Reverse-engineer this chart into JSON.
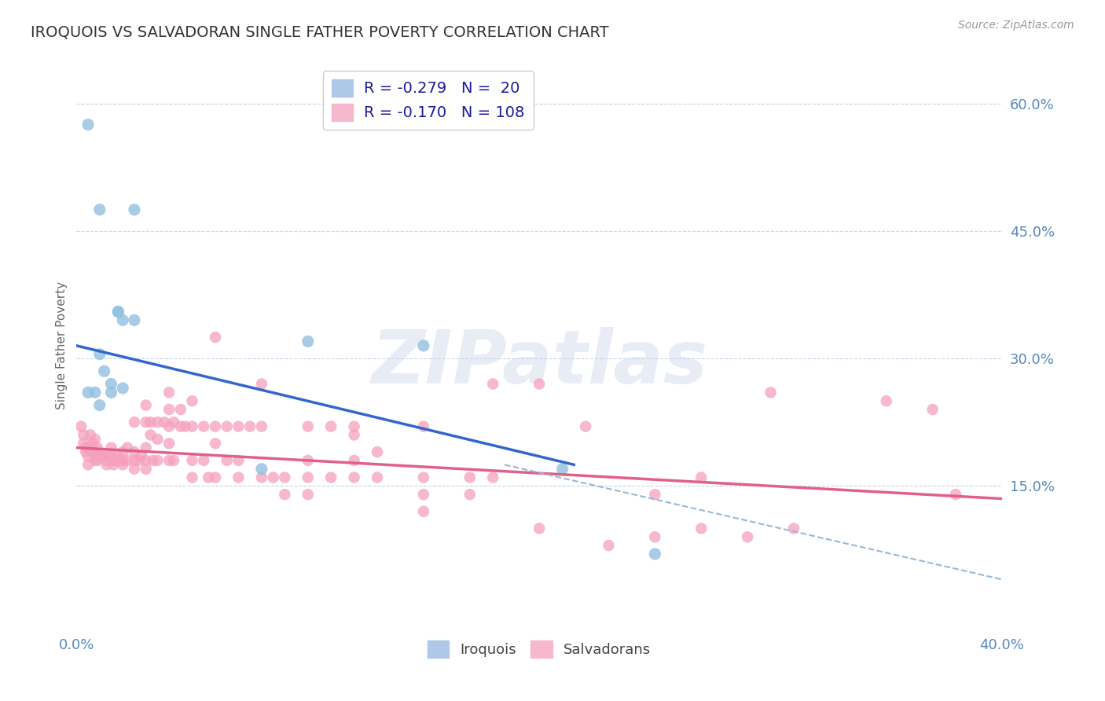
{
  "title": "IROQUOIS VS SALVADORAN SINGLE FATHER POVERTY CORRELATION CHART",
  "source": "Source: ZipAtlas.com",
  "ylabel": "Single Father Poverty",
  "xmin": 0.0,
  "xmax": 0.4,
  "ymin": -0.02,
  "ymax": 0.65,
  "right_yticks": [
    0.15,
    0.3,
    0.45,
    0.6
  ],
  "right_yticklabels": [
    "15.0%",
    "30.0%",
    "45.0%",
    "60.0%"
  ],
  "grid_yticks": [
    0.15,
    0.3,
    0.45,
    0.6
  ],
  "iroquois_color": "#92c0e0",
  "salvadoran_color": "#f5a0bc",
  "blue_line_color": "#3366cc",
  "pink_line_color": "#e06088",
  "dashed_line_color": "#99b8d8",
  "watermark": "ZIPatlas",
  "iroquois_points": [
    [
      0.005,
      0.575
    ],
    [
      0.01,
      0.475
    ],
    [
      0.025,
      0.475
    ],
    [
      0.018,
      0.355
    ],
    [
      0.02,
      0.345
    ],
    [
      0.025,
      0.345
    ],
    [
      0.018,
      0.355
    ],
    [
      0.005,
      0.26
    ],
    [
      0.01,
      0.305
    ],
    [
      0.012,
      0.285
    ],
    [
      0.015,
      0.27
    ],
    [
      0.008,
      0.26
    ],
    [
      0.01,
      0.245
    ],
    [
      0.015,
      0.26
    ],
    [
      0.02,
      0.265
    ],
    [
      0.15,
      0.315
    ],
    [
      0.1,
      0.32
    ],
    [
      0.08,
      0.17
    ],
    [
      0.21,
      0.17
    ],
    [
      0.25,
      0.07
    ]
  ],
  "salvadoran_points": [
    [
      0.002,
      0.22
    ],
    [
      0.003,
      0.21
    ],
    [
      0.003,
      0.2
    ],
    [
      0.004,
      0.195
    ],
    [
      0.004,
      0.19
    ],
    [
      0.005,
      0.195
    ],
    [
      0.005,
      0.185
    ],
    [
      0.005,
      0.175
    ],
    [
      0.006,
      0.21
    ],
    [
      0.006,
      0.195
    ],
    [
      0.007,
      0.2
    ],
    [
      0.007,
      0.19
    ],
    [
      0.008,
      0.205
    ],
    [
      0.008,
      0.19
    ],
    [
      0.008,
      0.18
    ],
    [
      0.009,
      0.195
    ],
    [
      0.009,
      0.18
    ],
    [
      0.01,
      0.185
    ],
    [
      0.01,
      0.185
    ],
    [
      0.01,
      0.185
    ],
    [
      0.012,
      0.185
    ],
    [
      0.012,
      0.185
    ],
    [
      0.013,
      0.18
    ],
    [
      0.013,
      0.175
    ],
    [
      0.015,
      0.185
    ],
    [
      0.015,
      0.185
    ],
    [
      0.015,
      0.195
    ],
    [
      0.016,
      0.18
    ],
    [
      0.016,
      0.175
    ],
    [
      0.017,
      0.18
    ],
    [
      0.018,
      0.185
    ],
    [
      0.018,
      0.18
    ],
    [
      0.019,
      0.18
    ],
    [
      0.02,
      0.19
    ],
    [
      0.02,
      0.18
    ],
    [
      0.02,
      0.175
    ],
    [
      0.022,
      0.195
    ],
    [
      0.022,
      0.18
    ],
    [
      0.025,
      0.225
    ],
    [
      0.025,
      0.19
    ],
    [
      0.025,
      0.18
    ],
    [
      0.025,
      0.17
    ],
    [
      0.027,
      0.18
    ],
    [
      0.028,
      0.185
    ],
    [
      0.03,
      0.245
    ],
    [
      0.03,
      0.225
    ],
    [
      0.03,
      0.195
    ],
    [
      0.03,
      0.18
    ],
    [
      0.03,
      0.17
    ],
    [
      0.032,
      0.225
    ],
    [
      0.032,
      0.21
    ],
    [
      0.033,
      0.18
    ],
    [
      0.035,
      0.225
    ],
    [
      0.035,
      0.205
    ],
    [
      0.035,
      0.18
    ],
    [
      0.038,
      0.225
    ],
    [
      0.04,
      0.26
    ],
    [
      0.04,
      0.24
    ],
    [
      0.04,
      0.22
    ],
    [
      0.04,
      0.2
    ],
    [
      0.04,
      0.18
    ],
    [
      0.042,
      0.225
    ],
    [
      0.042,
      0.18
    ],
    [
      0.045,
      0.24
    ],
    [
      0.045,
      0.22
    ],
    [
      0.047,
      0.22
    ],
    [
      0.05,
      0.25
    ],
    [
      0.05,
      0.22
    ],
    [
      0.05,
      0.18
    ],
    [
      0.05,
      0.16
    ],
    [
      0.055,
      0.22
    ],
    [
      0.055,
      0.18
    ],
    [
      0.057,
      0.16
    ],
    [
      0.06,
      0.325
    ],
    [
      0.06,
      0.22
    ],
    [
      0.06,
      0.2
    ],
    [
      0.06,
      0.16
    ],
    [
      0.065,
      0.22
    ],
    [
      0.065,
      0.18
    ],
    [
      0.07,
      0.22
    ],
    [
      0.07,
      0.18
    ],
    [
      0.07,
      0.16
    ],
    [
      0.075,
      0.22
    ],
    [
      0.08,
      0.27
    ],
    [
      0.08,
      0.22
    ],
    [
      0.08,
      0.16
    ],
    [
      0.085,
      0.16
    ],
    [
      0.09,
      0.16
    ],
    [
      0.09,
      0.14
    ],
    [
      0.1,
      0.22
    ],
    [
      0.1,
      0.18
    ],
    [
      0.1,
      0.16
    ],
    [
      0.1,
      0.14
    ],
    [
      0.11,
      0.22
    ],
    [
      0.11,
      0.16
    ],
    [
      0.12,
      0.22
    ],
    [
      0.12,
      0.21
    ],
    [
      0.12,
      0.18
    ],
    [
      0.12,
      0.16
    ],
    [
      0.13,
      0.19
    ],
    [
      0.13,
      0.16
    ],
    [
      0.15,
      0.22
    ],
    [
      0.15,
      0.16
    ],
    [
      0.15,
      0.14
    ],
    [
      0.15,
      0.12
    ],
    [
      0.17,
      0.16
    ],
    [
      0.17,
      0.14
    ],
    [
      0.18,
      0.27
    ],
    [
      0.18,
      0.16
    ],
    [
      0.2,
      0.27
    ],
    [
      0.22,
      0.22
    ],
    [
      0.25,
      0.14
    ],
    [
      0.27,
      0.16
    ],
    [
      0.3,
      0.26
    ],
    [
      0.35,
      0.25
    ],
    [
      0.37,
      0.24
    ],
    [
      0.38,
      0.14
    ],
    [
      0.2,
      0.1
    ],
    [
      0.23,
      0.08
    ],
    [
      0.25,
      0.09
    ],
    [
      0.27,
      0.1
    ],
    [
      0.29,
      0.09
    ],
    [
      0.31,
      0.1
    ]
  ],
  "blue_line": {
    "x0": 0.0,
    "y0": 0.315,
    "x1": 0.215,
    "y1": 0.175
  },
  "pink_line": {
    "x0": 0.0,
    "y0": 0.195,
    "x1": 0.4,
    "y1": 0.135
  },
  "dashed_line": {
    "x0": 0.185,
    "y0": 0.175,
    "x1": 0.4,
    "y1": 0.04
  },
  "background_color": "#ffffff",
  "grid_color": "#c8d4e8",
  "title_color": "#333333",
  "axis_label_color": "#5588bb",
  "legend_text_color": "#1a1a99"
}
